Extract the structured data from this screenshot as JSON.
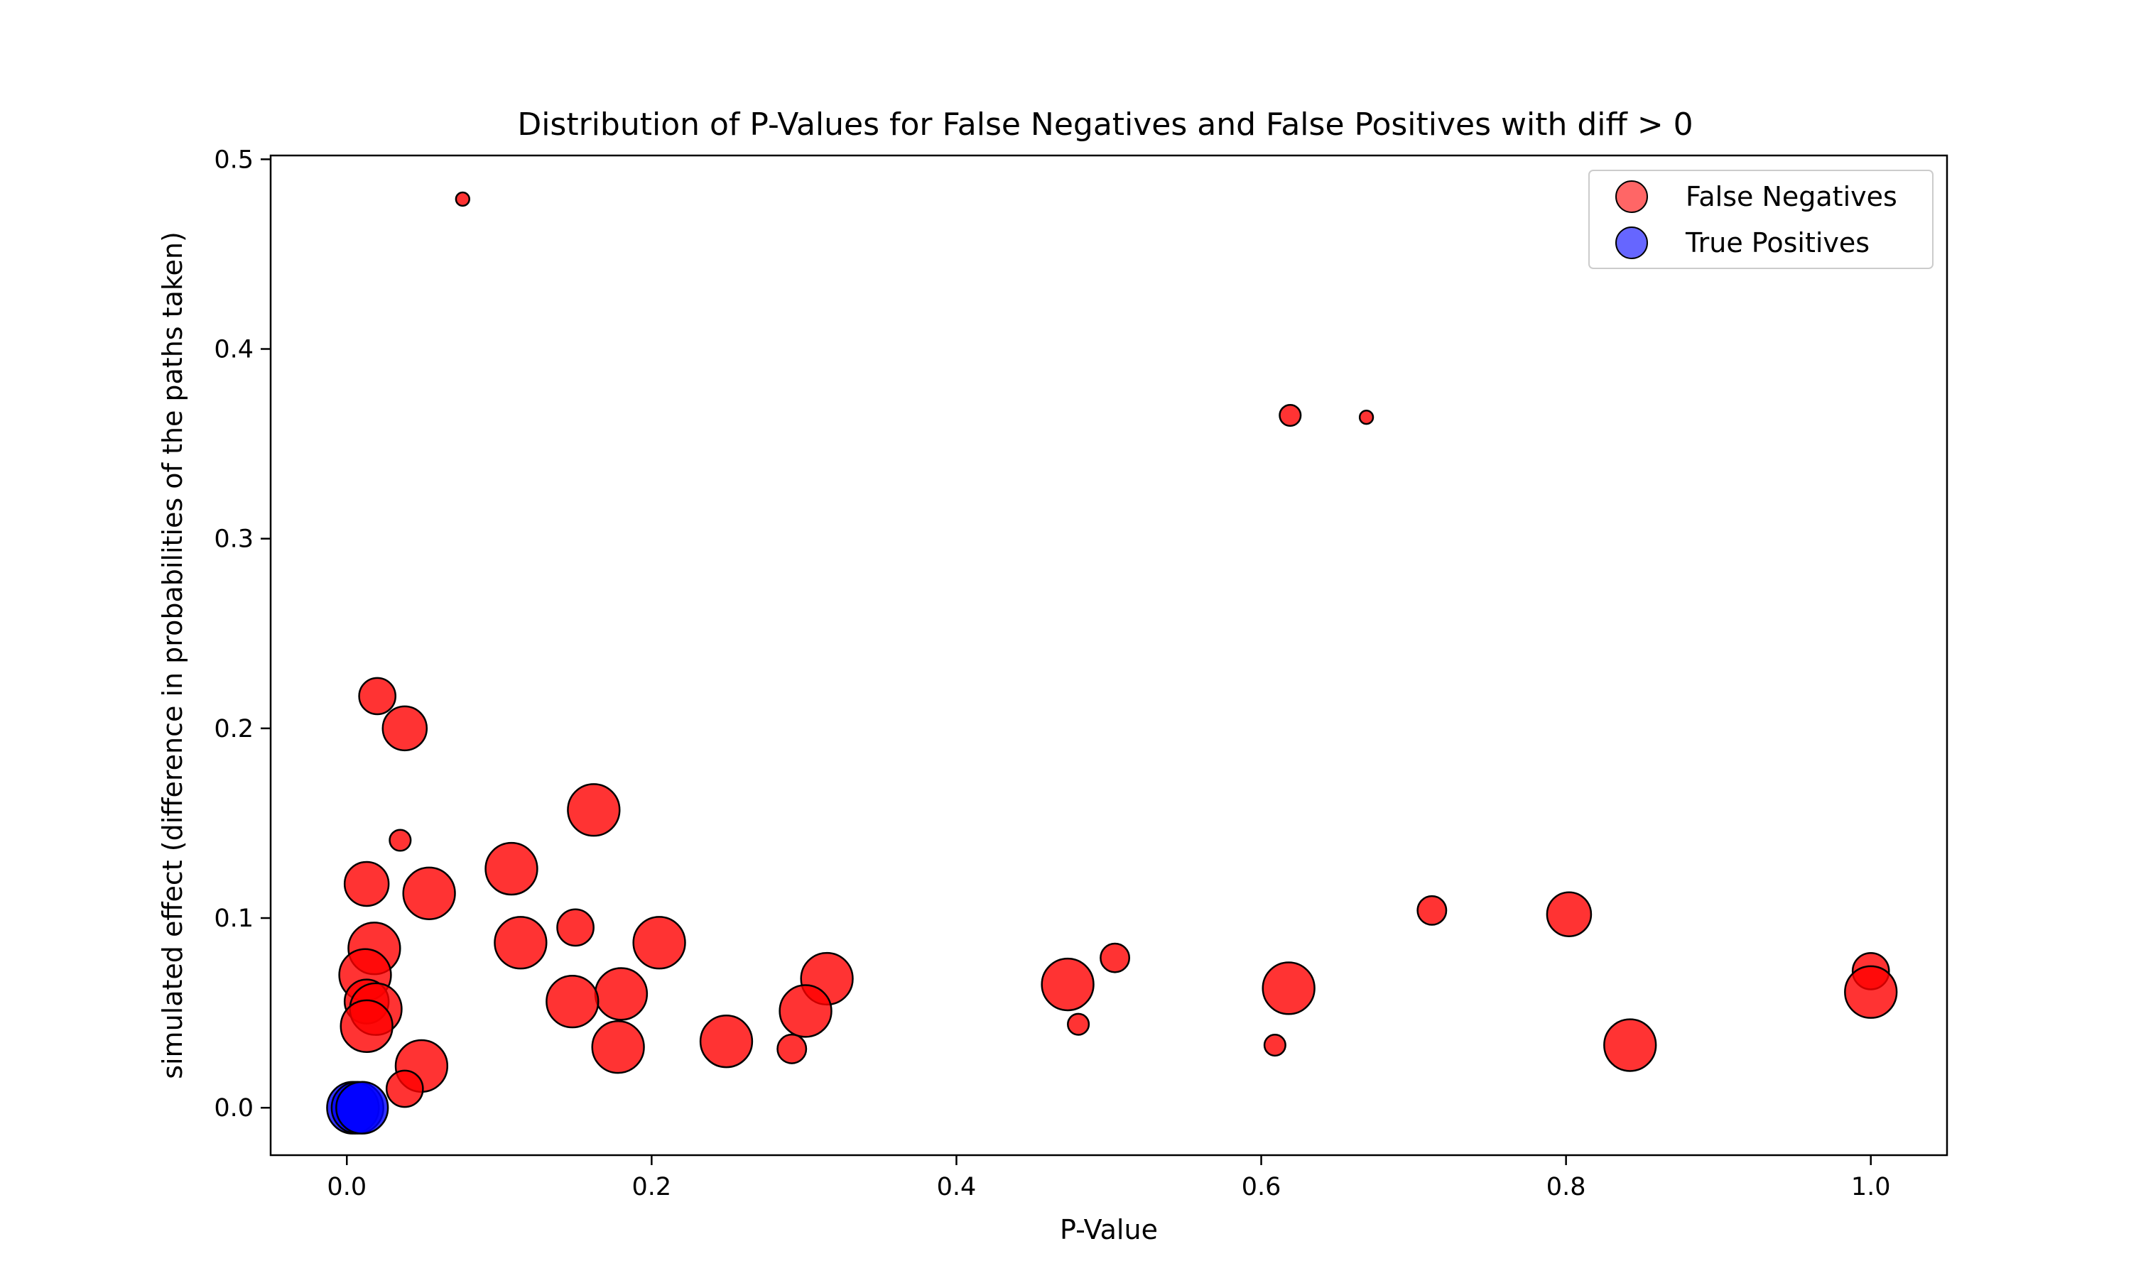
{
  "chart_data": {
    "type": "scatter",
    "title": "Distribution of P-Values for False Negatives and False Positives with diff > 0",
    "xlabel": "P-Value",
    "ylabel": "simulated effect (difference in probabilities of the paths taken)",
    "xlim": [
      -0.05,
      1.05
    ],
    "ylim": [
      -0.025,
      0.502
    ],
    "xticks": [
      "0.0",
      "0.2",
      "0.4",
      "0.6",
      "0.8",
      "1.0"
    ],
    "yticks": [
      "0.0",
      "0.1",
      "0.2",
      "0.3",
      "0.4",
      "0.5"
    ],
    "legend_position": "top-right",
    "grid": false,
    "series": [
      {
        "name": "False Negatives",
        "color": "#ff0000",
        "points": [
          {
            "x": 0.076,
            "y": 0.479,
            "size": 1
          },
          {
            "x": 0.619,
            "y": 0.365,
            "size": 2
          },
          {
            "x": 0.669,
            "y": 0.364,
            "size": 1
          },
          {
            "x": 0.02,
            "y": 0.217,
            "size": 4
          },
          {
            "x": 0.038,
            "y": 0.2,
            "size": 5
          },
          {
            "x": 0.162,
            "y": 0.157,
            "size": 6
          },
          {
            "x": 0.035,
            "y": 0.141,
            "size": 2
          },
          {
            "x": 0.108,
            "y": 0.126,
            "size": 6
          },
          {
            "x": 0.013,
            "y": 0.118,
            "size": 5
          },
          {
            "x": 0.054,
            "y": 0.113,
            "size": 6
          },
          {
            "x": 0.712,
            "y": 0.104,
            "size": 3
          },
          {
            "x": 0.802,
            "y": 0.102,
            "size": 5
          },
          {
            "x": 0.15,
            "y": 0.095,
            "size": 4
          },
          {
            "x": 0.114,
            "y": 0.087,
            "size": 6
          },
          {
            "x": 0.205,
            "y": 0.087,
            "size": 6
          },
          {
            "x": 0.018,
            "y": 0.084,
            "size": 6
          },
          {
            "x": 0.504,
            "y": 0.079,
            "size": 3
          },
          {
            "x": 1.0,
            "y": 0.072,
            "size": 4
          },
          {
            "x": 0.012,
            "y": 0.07,
            "size": 6
          },
          {
            "x": 0.315,
            "y": 0.068,
            "size": 6
          },
          {
            "x": 0.473,
            "y": 0.065,
            "size": 6
          },
          {
            "x": 0.618,
            "y": 0.063,
            "size": 6
          },
          {
            "x": 1.0,
            "y": 0.061,
            "size": 6
          },
          {
            "x": 0.18,
            "y": 0.06,
            "size": 6
          },
          {
            "x": 0.148,
            "y": 0.056,
            "size": 6
          },
          {
            "x": 0.013,
            "y": 0.056,
            "size": 5
          },
          {
            "x": 0.019,
            "y": 0.052,
            "size": 6
          },
          {
            "x": 0.301,
            "y": 0.051,
            "size": 6
          },
          {
            "x": 0.48,
            "y": 0.044,
            "size": 2
          },
          {
            "x": 0.013,
            "y": 0.043,
            "size": 6
          },
          {
            "x": 0.249,
            "y": 0.035,
            "size": 6
          },
          {
            "x": 0.842,
            "y": 0.033,
            "size": 6
          },
          {
            "x": 0.609,
            "y": 0.033,
            "size": 2
          },
          {
            "x": 0.178,
            "y": 0.032,
            "size": 6
          },
          {
            "x": 0.292,
            "y": 0.031,
            "size": 3
          },
          {
            "x": 0.049,
            "y": 0.022,
            "size": 6
          },
          {
            "x": 0.038,
            "y": 0.01,
            "size": 4
          }
        ]
      },
      {
        "name": "True Positives",
        "color": "#0000ff",
        "points": [
          {
            "x": 0.004,
            "y": 0.0,
            "size": 6
          },
          {
            "x": 0.007,
            "y": 0.0,
            "size": 6
          },
          {
            "x": 0.01,
            "y": 0.0,
            "size": 6
          }
        ]
      }
    ]
  }
}
